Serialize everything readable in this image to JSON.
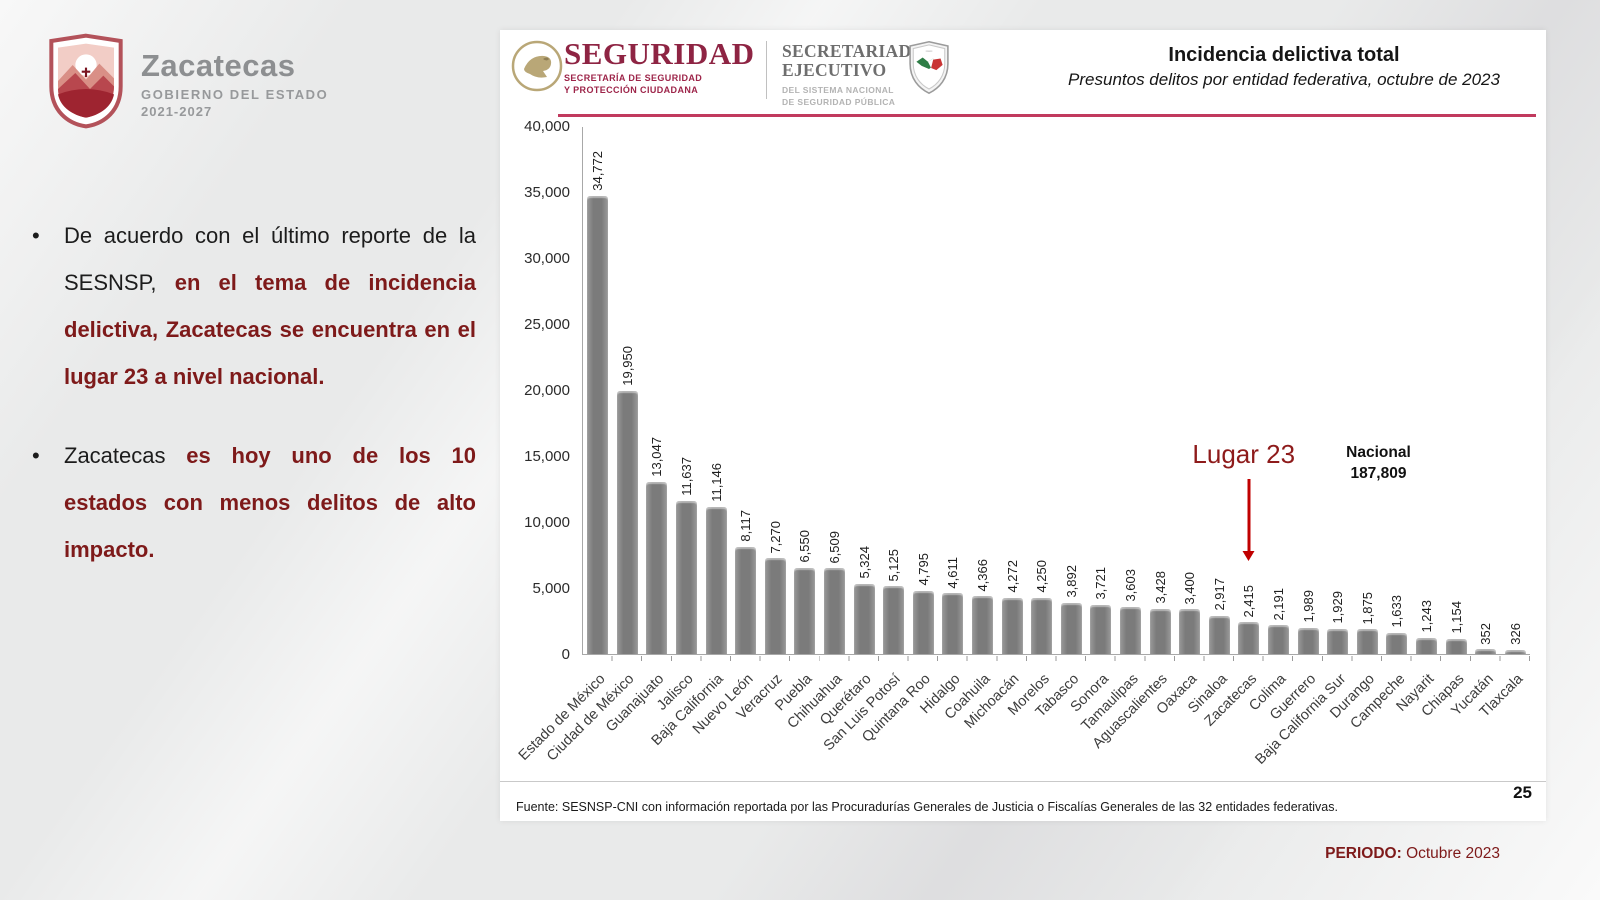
{
  "bullet_marker": "•",
  "state_logo": {
    "name": "Zacatecas",
    "subtitle": "GOBIERNO DEL ESTADO",
    "years": "2021-2027"
  },
  "bullets": [
    {
      "lead": "De acuerdo con el último reporte de la SESNSP, ",
      "emph": "en el tema de incidencia delictiva, Zacatecas se encuentra en el lugar 23 a nivel nacional."
    },
    {
      "lead": "Zacatecas ",
      "emph": "es hoy uno de los 10 estados con menos delitos de alto impacto."
    }
  ],
  "panel_header": {
    "brand": "SEGURIDAD",
    "brand_sub1": "SECRETARÍA DE SEGURIDAD",
    "brand_sub2": "Y PROTECCIÓN CIUDADANA",
    "org_line1": "SECRETARIADO",
    "org_line2": "EJECUTIVO",
    "org_sub1": "DEL SISTEMA NACIONAL",
    "org_sub2": "DE SEGURIDAD PÚBLICA",
    "title": "Incidencia delictiva total",
    "subtitle": "Presuntos delitos por entidad federativa, octubre de 2023"
  },
  "annotations": {
    "lugar": "Lugar 23",
    "nacional_label": "Nacional",
    "nacional_value": "187,809"
  },
  "footer": {
    "fuente": "Fuente: SESNSP-CNI con información reportada por las Procuradurías Generales de Justicia o Fiscalías Generales de las 32 entidades federativas.",
    "page_number": "25",
    "periodo_label": "PERIODO:",
    "periodo_value": " Octubre 2023"
  },
  "colors": {
    "brand_maroon": "#9d2449",
    "dark_red_text": "#7e1a1a",
    "lugar_red": "#8e1b1b",
    "arrow_red": "#c00000",
    "bar_gray": "#7b7b7b",
    "header_rule": "#c13a5e"
  },
  "chart_data": {
    "type": "bar",
    "title": "Incidencia delictiva total",
    "subtitle": "Presuntos delitos por entidad federativa, octubre de 2023",
    "xlabel": "",
    "ylabel": "",
    "ylim": [
      0,
      40000
    ],
    "grid": false,
    "legend": false,
    "yticks": [
      "0",
      "5,000",
      "10,000",
      "15,000",
      "20,000",
      "25,000",
      "30,000",
      "35,000",
      "40,000"
    ],
    "categories": [
      "Estado de México",
      "Ciudad de México",
      "Guanajuato",
      "Jalisco",
      "Baja California",
      "Nuevo León",
      "Veracruz",
      "Puebla",
      "Chihuahua",
      "Querétaro",
      "San Luis Potosí",
      "Quintana Roo",
      "Hidalgo",
      "Coahuila",
      "Michoacán",
      "Morelos",
      "Tabasco",
      "Sonora",
      "Tamaulipas",
      "Aguascalientes",
      "Oaxaca",
      "Sinaloa",
      "Zacatecas",
      "Colima",
      "Guerrero",
      "Baja California Sur",
      "Durango",
      "Campeche",
      "Nayarit",
      "Chiapas",
      "Yucatán",
      "Tlaxcala"
    ],
    "values": [
      34772,
      19950,
      13047,
      11637,
      11146,
      8117,
      7270,
      6550,
      6509,
      5324,
      5125,
      4795,
      4611,
      4366,
      4272,
      4250,
      3892,
      3721,
      3603,
      3428,
      3400,
      2917,
      2415,
      2191,
      1989,
      1929,
      1875,
      1633,
      1243,
      1154,
      352,
      326
    ],
    "value_labels": [
      "34,772",
      "19,950",
      "13,047",
      "11,637",
      "11,146",
      "8,117",
      "7,270",
      "6,550",
      "6,509",
      "5,324",
      "5,125",
      "4,795",
      "4,611",
      "4,366",
      "4,272",
      "4,250",
      "3,892",
      "3,721",
      "3,603",
      "3,428",
      "3,400",
      "2,917",
      "2,415",
      "2,191",
      "1,989",
      "1,929",
      "1,875",
      "1,633",
      "1,243",
      "1,154",
      "352",
      "326"
    ],
    "highlight_category": "Zacatecas",
    "highlight_annotation": "Lugar 23",
    "national_total_label": "Nacional",
    "national_total_value": "187,809"
  }
}
